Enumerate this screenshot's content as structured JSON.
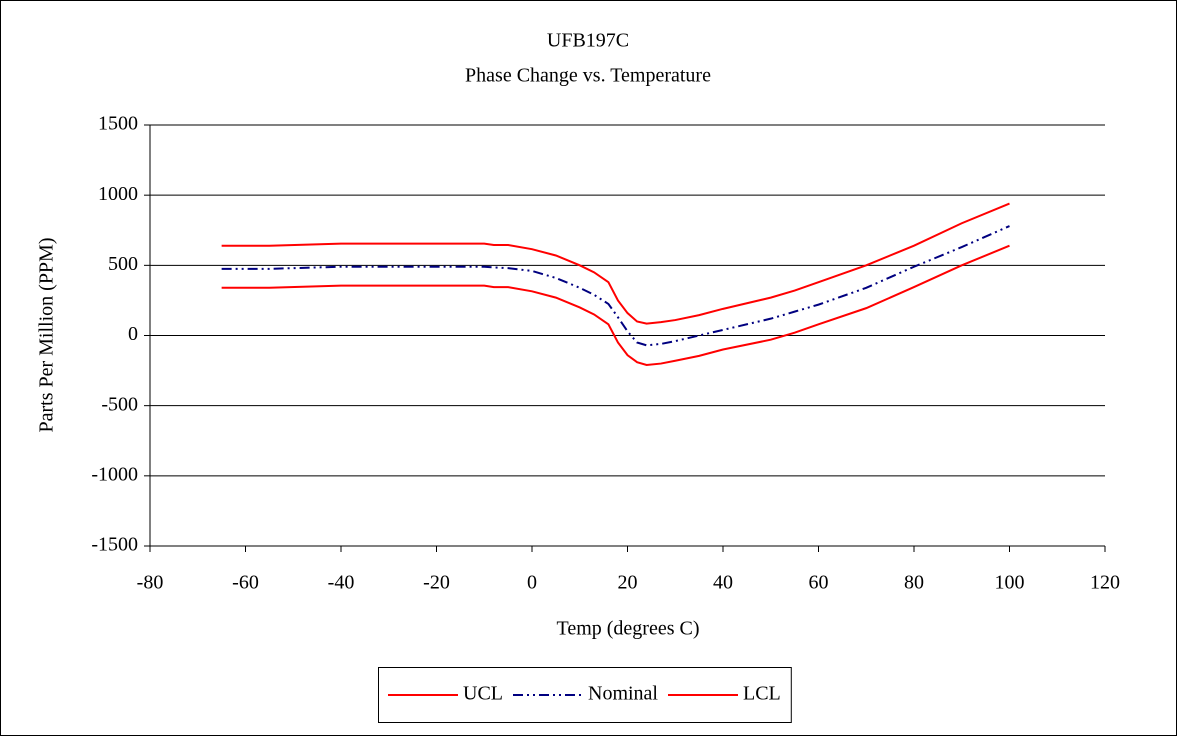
{
  "chart_data": {
    "type": "line",
    "title": "UFB197C",
    "subtitle": "Phase Change vs. Temperature",
    "x_label": "Temp (degrees C)",
    "y_label": "Parts Per Million (PPM)",
    "x": [
      -65,
      -55,
      -40,
      -20,
      -10,
      -8,
      -5,
      0,
      5,
      10,
      13,
      16,
      18,
      20,
      22,
      24,
      27,
      30,
      35,
      40,
      50,
      55,
      60,
      70,
      80,
      90,
      100
    ],
    "series": [
      {
        "name": "UCL",
        "color": "#ff0000",
        "dash": "solid",
        "values": [
          640,
          640,
          655,
          655,
          655,
          645,
          645,
          615,
          570,
          500,
          450,
          380,
          250,
          160,
          100,
          85,
          95,
          110,
          145,
          190,
          270,
          320,
          380,
          500,
          640,
          800,
          940
        ]
      },
      {
        "name": "Nominal",
        "color": "#000080",
        "dash": "dash-dot-dot",
        "values": [
          475,
          475,
          490,
          490,
          490,
          485,
          480,
          460,
          410,
          340,
          290,
          225,
          130,
          30,
          -50,
          -70,
          -60,
          -40,
          0,
          40,
          120,
          170,
          220,
          340,
          490,
          630,
          780
        ]
      },
      {
        "name": "LCL",
        "color": "#ff0000",
        "dash": "solid",
        "values": [
          340,
          340,
          355,
          355,
          355,
          345,
          345,
          315,
          270,
          200,
          150,
          80,
          -50,
          -140,
          -190,
          -210,
          -200,
          -180,
          -145,
          -100,
          -30,
          20,
          80,
          195,
          345,
          500,
          640
        ]
      }
    ],
    "xlim": [
      -80,
      120
    ],
    "xticks": [
      -80,
      -60,
      -40,
      -20,
      0,
      20,
      40,
      60,
      80,
      100,
      120
    ],
    "ylim": [
      -1500,
      1500
    ],
    "yticks": [
      -1500,
      -1000,
      -500,
      0,
      500,
      1000,
      1500
    ],
    "grid": true,
    "legend": "bottom"
  }
}
